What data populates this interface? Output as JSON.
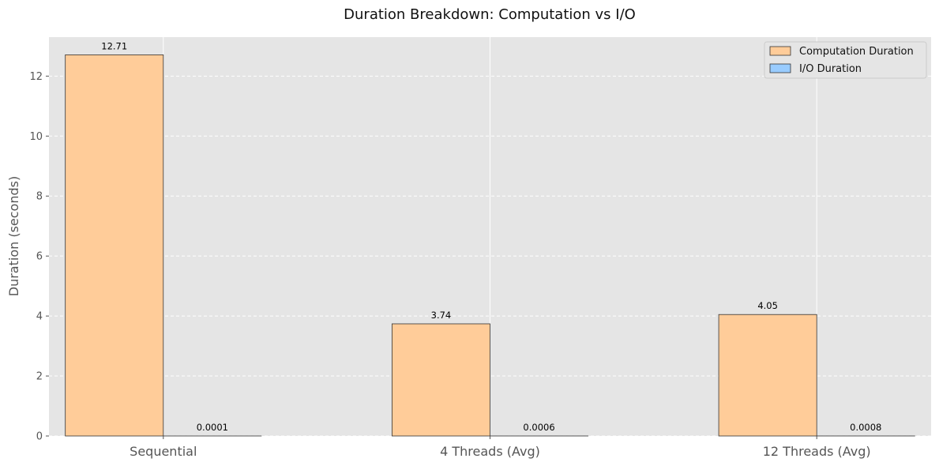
{
  "chart_data": {
    "type": "bar",
    "title": "Duration Breakdown: Computation vs I/O",
    "xlabel": "",
    "ylabel": "Duration (seconds)",
    "categories": [
      "Sequential",
      "4 Threads (Avg)",
      "12 Threads (Avg)"
    ],
    "series": [
      {
        "name": "Computation Duration",
        "values": [
          12.71,
          3.74,
          4.05
        ],
        "labels": [
          "12.71",
          "3.74",
          "4.05"
        ],
        "color": "#ffcc99"
      },
      {
        "name": "I/O Duration",
        "values": [
          0.0001,
          0.0006,
          0.0008
        ],
        "labels": [
          "0.0001",
          "0.0006",
          "0.0008"
        ],
        "color": "#99ccff"
      }
    ],
    "ylim": [
      0,
      13.3
    ],
    "yticks": [
      0,
      2,
      4,
      6,
      8,
      10,
      12
    ],
    "grid": true,
    "legend_position": "top-right",
    "background_color": "#e5e5e5",
    "edge_color": "#333333"
  }
}
